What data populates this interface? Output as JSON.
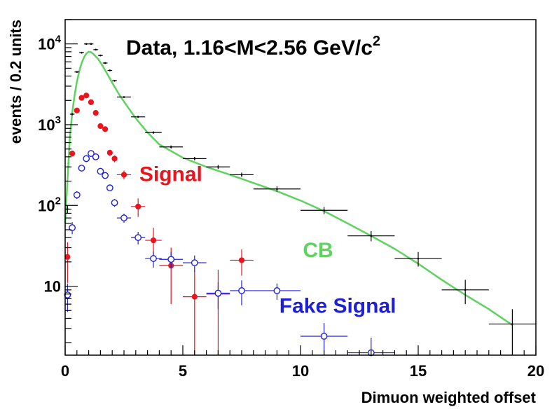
{
  "chart_data": {
    "type": "scatter",
    "title": "Data, 1.16<M<2.56 GeV/c",
    "title_superscript": "2",
    "xlabel": "Dimuon weighted offset",
    "ylabel": "events / 0.2 units",
    "xlim": [
      0,
      20
    ],
    "ylim": [
      1.4,
      20000
    ],
    "yscale": "log",
    "x_ticks": [
      0,
      5,
      10,
      15,
      20
    ],
    "x_tick_labels": [
      "0",
      "5",
      "10",
      "15",
      "20"
    ],
    "y_tick_labels": [
      {
        "value": 10,
        "base": "10",
        "exp": ""
      },
      {
        "value": 100,
        "base": "10",
        "exp": "2"
      },
      {
        "value": 1000,
        "base": "10",
        "exp": "3"
      },
      {
        "value": 10000,
        "base": "10",
        "exp": "4"
      }
    ],
    "colors": {
      "data": "#000000",
      "signal": "#e8141e",
      "fake": "#1f1fd6",
      "cb": "#5fd25f"
    },
    "annotations": [
      {
        "text": "Signal",
        "color": "#e8141e",
        "x": 3.15,
        "y": 200
      },
      {
        "text": "CB",
        "color": "#5fd25f",
        "x": 10.1,
        "y": 23
      },
      {
        "text": "Fake Signal",
        "color": "#1f1fd6",
        "x": 9.1,
        "y": 4.7
      }
    ],
    "series": [
      {
        "name": "Data",
        "marker": "dot",
        "points": [
          {
            "x": 0.1,
            "y": 90,
            "xerr": 0.1,
            "yerr": 10
          },
          {
            "x": 0.3,
            "y": 1350,
            "xerr": 0.1,
            "yerr": 40
          },
          {
            "x": 0.5,
            "y": 4500,
            "xerr": 0.1,
            "yerr": 70
          },
          {
            "x": 0.7,
            "y": 7800,
            "xerr": 0.1,
            "yerr": 90
          },
          {
            "x": 0.9,
            "y": 10000,
            "xerr": 0.1,
            "yerr": 100
          },
          {
            "x": 1.1,
            "y": 10000,
            "xerr": 0.1,
            "yerr": 100
          },
          {
            "x": 1.3,
            "y": 8500,
            "xerr": 0.1,
            "yerr": 90
          },
          {
            "x": 1.5,
            "y": 7200,
            "xerr": 0.1,
            "yerr": 85
          },
          {
            "x": 1.7,
            "y": 5800,
            "xerr": 0.1,
            "yerr": 75
          },
          {
            "x": 1.9,
            "y": 4700,
            "xerr": 0.1,
            "yerr": 70
          },
          {
            "x": 2.1,
            "y": 3500,
            "xerr": 0.1,
            "yerr": 60
          },
          {
            "x": 2.5,
            "y": 2200,
            "xerr": 0.3,
            "yerr": 47
          },
          {
            "x": 3.1,
            "y": 1250,
            "xerr": 0.3,
            "yerr": 35
          },
          {
            "x": 3.75,
            "y": 800,
            "xerr": 0.35,
            "yerr": 28
          },
          {
            "x": 4.5,
            "y": 530,
            "xerr": 0.5,
            "yerr": 23
          },
          {
            "x": 5.5,
            "y": 380,
            "xerr": 0.5,
            "yerr": 19
          },
          {
            "x": 6.5,
            "y": 300,
            "xerr": 0.5,
            "yerr": 17
          },
          {
            "x": 7.5,
            "y": 240,
            "xerr": 0.5,
            "yerr": 15
          },
          {
            "x": 9,
            "y": 160,
            "xerr": 1,
            "yerr": 12
          },
          {
            "x": 11,
            "y": 87,
            "xerr": 1,
            "yerr": 9
          },
          {
            "x": 13,
            "y": 42,
            "xerr": 1,
            "yerr": 6
          },
          {
            "x": 15,
            "y": 22,
            "xerr": 1,
            "yerr": 4.5
          },
          {
            "x": 17,
            "y": 9,
            "xerr": 1,
            "yerr": 3
          },
          {
            "x": 19,
            "y": 3.4,
            "xerr": 1,
            "yerr": 1.8
          }
        ]
      },
      {
        "name": "Signal",
        "marker": "filled-circle",
        "points": [
          {
            "x": 0.1,
            "y": 23,
            "xerr": 0.1,
            "yerr": 12
          },
          {
            "x": 0.3,
            "y": 440,
            "xerr": 0.1,
            "yerr": 35
          },
          {
            "x": 0.5,
            "y": 1500,
            "xerr": 0.1,
            "yerr": 60
          },
          {
            "x": 0.7,
            "y": 2150,
            "xerr": 0.1,
            "yerr": 70
          },
          {
            "x": 0.9,
            "y": 2300,
            "xerr": 0.1,
            "yerr": 70
          },
          {
            "x": 1.1,
            "y": 1900,
            "xerr": 0.1,
            "yerr": 65
          },
          {
            "x": 1.3,
            "y": 1400,
            "xerr": 0.1,
            "yerr": 55
          },
          {
            "x": 1.5,
            "y": 960,
            "xerr": 0.1,
            "yerr": 50
          },
          {
            "x": 1.7,
            "y": 880,
            "xerr": 0.1,
            "yerr": 48
          },
          {
            "x": 1.9,
            "y": 450,
            "xerr": 0.1,
            "yerr": 40
          },
          {
            "x": 2.1,
            "y": 380,
            "xerr": 0.1,
            "yerr": 38
          },
          {
            "x": 2.5,
            "y": 240,
            "xerr": 0.3,
            "yerr": 30
          },
          {
            "x": 3.1,
            "y": 97,
            "xerr": 0.3,
            "yerr": 25
          },
          {
            "x": 3.75,
            "y": 37,
            "xerr": 0.35,
            "yerr": 16
          },
          {
            "x": 4.5,
            "y": 18,
            "xerr": 0.5,
            "yerr": 12
          },
          {
            "x": 5.5,
            "y": 7.4,
            "xerr": 0.5,
            "yerr": 8
          },
          {
            "x": 6.5,
            "y": 8,
            "xerr": 0.5,
            "yerr": 8
          },
          {
            "x": 7.5,
            "y": 21,
            "xerr": 0.5,
            "yerr": 7.5
          }
        ]
      },
      {
        "name": "Fake Signal",
        "marker": "open-circle",
        "points": [
          {
            "x": 0.1,
            "y": 7.8,
            "xerr": 0.1,
            "yerr": 3
          },
          {
            "x": 0.3,
            "y": 53,
            "xerr": 0.1,
            "yerr": 9
          },
          {
            "x": 0.5,
            "y": 135,
            "xerr": 0.1,
            "yerr": 15
          },
          {
            "x": 0.7,
            "y": 290,
            "xerr": 0.1,
            "yerr": 20
          },
          {
            "x": 0.9,
            "y": 380,
            "xerr": 0.1,
            "yerr": 22
          },
          {
            "x": 1.1,
            "y": 440,
            "xerr": 0.1,
            "yerr": 24
          },
          {
            "x": 1.3,
            "y": 400,
            "xerr": 0.1,
            "yerr": 23
          },
          {
            "x": 1.5,
            "y": 265,
            "xerr": 0.1,
            "yerr": 18
          },
          {
            "x": 1.7,
            "y": 235,
            "xerr": 0.1,
            "yerr": 17
          },
          {
            "x": 1.9,
            "y": 165,
            "xerr": 0.1,
            "yerr": 14
          },
          {
            "x": 2.1,
            "y": 108,
            "xerr": 0.1,
            "yerr": 12
          },
          {
            "x": 2.5,
            "y": 70,
            "xerr": 0.3,
            "yerr": 9
          },
          {
            "x": 3.1,
            "y": 40,
            "xerr": 0.3,
            "yerr": 7
          },
          {
            "x": 3.75,
            "y": 22,
            "xerr": 0.35,
            "yerr": 5
          },
          {
            "x": 4.5,
            "y": 21.5,
            "xerr": 0.5,
            "yerr": 5
          },
          {
            "x": 5.5,
            "y": 19.5,
            "xerr": 0.5,
            "yerr": 4.5
          },
          {
            "x": 6.5,
            "y": 8.2,
            "xerr": 0.5,
            "yerr": 3
          },
          {
            "x": 7.5,
            "y": 8.8,
            "xerr": 0.5,
            "yerr": 3
          },
          {
            "x": 9,
            "y": 8.8,
            "xerr": 1,
            "yerr": 2
          },
          {
            "x": 11,
            "y": 2.4,
            "xerr": 1,
            "yerr": 1.1
          },
          {
            "x": 13,
            "y": 1.5,
            "xerr": 1,
            "yerr": 0.8
          }
        ]
      }
    ],
    "curve": {
      "name": "CB",
      "x": [
        0,
        0.1,
        0.2,
        0.3,
        0.4,
        0.5,
        0.6,
        0.7,
        0.8,
        0.9,
        1.0,
        1.1,
        1.2,
        1.4,
        1.6,
        1.8,
        2.0,
        2.3,
        2.6,
        3.0,
        3.5,
        4.0,
        5.0,
        6.0,
        7.0,
        8.0,
        9.0,
        10.0,
        11.0,
        12.0,
        13.0,
        14.0,
        15.0,
        16.0,
        17.0,
        18.0,
        19.0
      ],
      "y": [
        60,
        210,
        700,
        1400,
        2300,
        3400,
        4600,
        5800,
        6800,
        7600,
        8000,
        7900,
        7500,
        6500,
        5300,
        4200,
        3300,
        2350,
        1750,
        1200,
        800,
        570,
        390,
        300,
        240,
        190,
        150,
        115,
        85,
        60,
        42,
        29,
        19,
        12,
        7.8,
        5.2,
        3.3
      ]
    }
  }
}
